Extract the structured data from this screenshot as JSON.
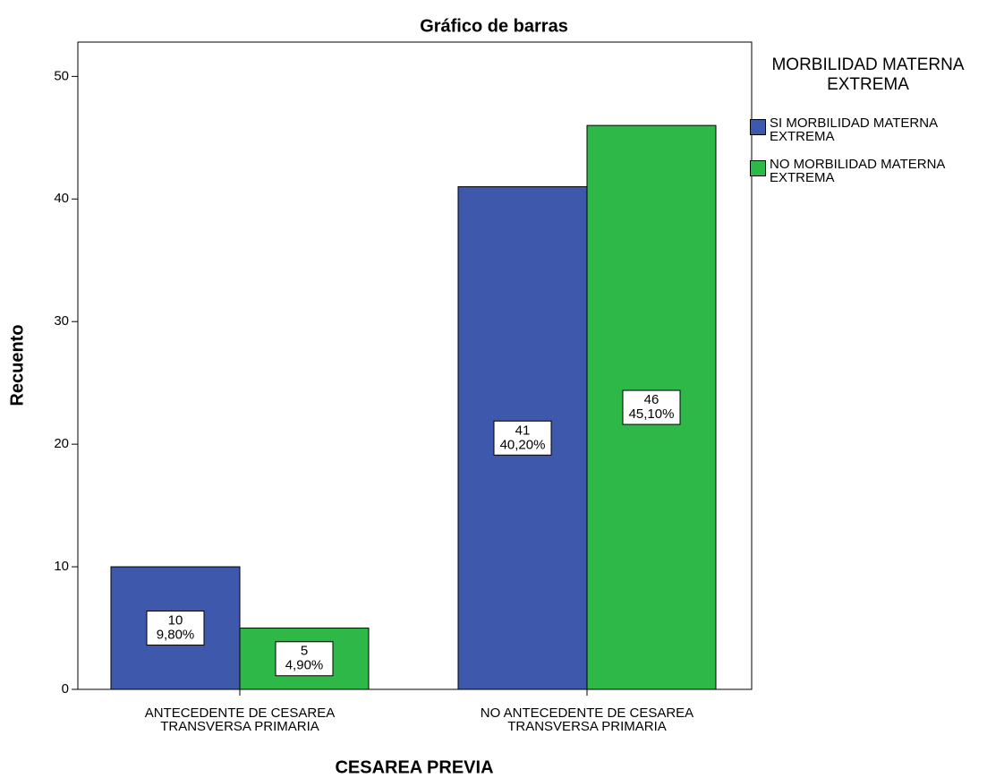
{
  "chart_data": {
    "type": "bar",
    "title": "Gráfico de barras",
    "x_label": "CESAREA PREVIA",
    "y_label": "Recuento",
    "categories": [
      "ANTECEDENTE DE CESAREA TRANSVERSA PRIMARIA",
      "NO ANTECEDENTE DE CESAREA TRANSVERSA PRIMARIA"
    ],
    "legend_title": "MORBILIDAD MATERNA EXTREMA",
    "legend": "right",
    "series": [
      {
        "name": "SI MORBILIDAD MATERNA EXTREMA",
        "color": "#3e58ac",
        "values": [
          10,
          41
        ],
        "percent_labels": [
          "9,80%",
          "40,20%"
        ]
      },
      {
        "name": "NO MORBILIDAD MATERNA EXTREMA",
        "color": "#2eb847",
        "values": [
          5,
          46
        ],
        "percent_labels": [
          "4,90%",
          "45,10%"
        ]
      }
    ],
    "ylim": [
      0,
      52.8
    ],
    "yticks": [
      0,
      10,
      20,
      30,
      40,
      50
    ],
    "grid": false
  }
}
